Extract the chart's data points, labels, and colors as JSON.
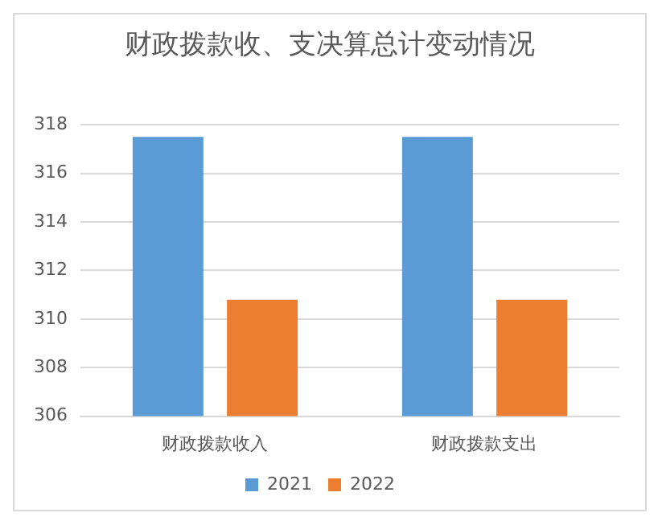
{
  "chart_data": {
    "type": "bar",
    "title": "财政拨款收、支决算总计变动情况",
    "categories": [
      "财政拨款收入",
      "财政拨款支出"
    ],
    "series": [
      {
        "name": "2021",
        "color": "#5b9bd5",
        "values": [
          317.5,
          317.5
        ]
      },
      {
        "name": "2022",
        "color": "#ed7d31",
        "values": [
          310.8,
          310.8
        ]
      }
    ],
    "ylim": [
      306,
      318
    ],
    "yticks": [
      306,
      308,
      310,
      312,
      314,
      316,
      318
    ],
    "grid": "y",
    "legend": "bottom"
  }
}
